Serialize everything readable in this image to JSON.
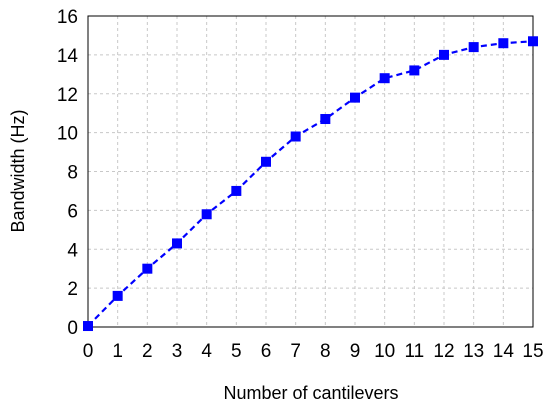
{
  "chart_data": {
    "type": "line",
    "title": "",
    "xlabel": "Number of cantilevers",
    "ylabel": "Bandwidth (Hz)",
    "xlim": [
      0,
      15
    ],
    "ylim": [
      0,
      16
    ],
    "x_ticks": [
      "0",
      "1",
      "2",
      "3",
      "4",
      "5",
      "6",
      "7",
      "8",
      "9",
      "10",
      "11",
      "12",
      "13",
      "14",
      "15"
    ],
    "y_ticks": [
      "0",
      "2",
      "4",
      "6",
      "8",
      "10",
      "12",
      "14",
      "16"
    ],
    "grid": true,
    "legend": "none",
    "series": [
      {
        "color": "#0000ff",
        "line_style": "dashed",
        "marker": "square",
        "x": [
          0,
          1,
          2,
          3,
          4,
          5,
          6,
          7,
          8,
          9,
          10,
          11,
          12,
          13,
          14,
          15
        ],
        "y": [
          0.05,
          1.6,
          3.0,
          4.3,
          5.8,
          7.0,
          8.5,
          9.8,
          10.7,
          11.8,
          12.8,
          13.2,
          14.0,
          14.4,
          14.6,
          14.7
        ]
      }
    ]
  }
}
